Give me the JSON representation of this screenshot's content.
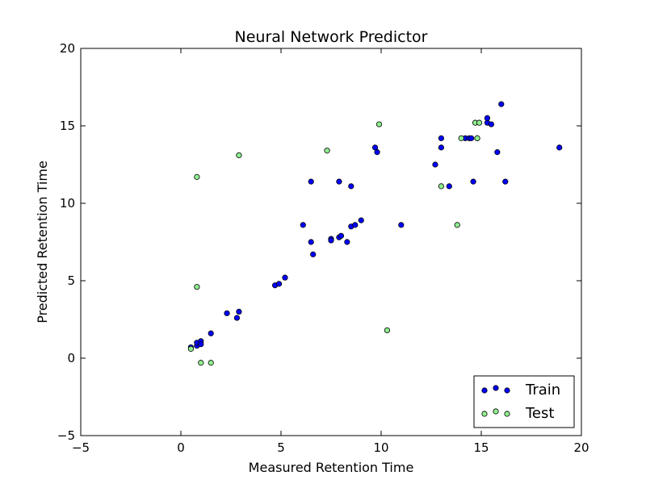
{
  "chart_data": {
    "type": "scatter",
    "title": "Neural Network Predictor",
    "xlabel": "Measured Retention Time",
    "ylabel": "Predicted Retention Time",
    "xlim": [
      -5,
      20
    ],
    "ylim": [
      -5,
      20
    ],
    "xticks": [
      -5,
      0,
      5,
      10,
      15,
      20
    ],
    "yticks": [
      -5,
      0,
      5,
      10,
      15,
      20
    ],
    "xtick_labels": [
      "−5",
      "0",
      "5",
      "10",
      "15",
      "20"
    ],
    "ytick_labels": [
      "−5",
      "0",
      "5",
      "10",
      "15",
      "20"
    ],
    "grid": false,
    "legend_position": "bottom-right",
    "series": [
      {
        "name": "Train",
        "color": "#0000ff",
        "points": [
          [
            0.5,
            0.7
          ],
          [
            0.8,
            0.8
          ],
          [
            0.8,
            1.0
          ],
          [
            1.0,
            1.1
          ],
          [
            1.0,
            0.9
          ],
          [
            1.5,
            1.6
          ],
          [
            2.3,
            2.9
          ],
          [
            2.8,
            2.6
          ],
          [
            2.9,
            3.0
          ],
          [
            4.7,
            4.7
          ],
          [
            4.9,
            4.8
          ],
          [
            5.2,
            5.2
          ],
          [
            6.1,
            8.6
          ],
          [
            6.5,
            7.5
          ],
          [
            6.6,
            6.7
          ],
          [
            6.5,
            11.4
          ],
          [
            7.5,
            7.7
          ],
          [
            7.5,
            7.6
          ],
          [
            7.9,
            7.8
          ],
          [
            8.0,
            7.9
          ],
          [
            8.3,
            7.5
          ],
          [
            7.9,
            11.4
          ],
          [
            8.5,
            11.1
          ],
          [
            8.5,
            8.5
          ],
          [
            8.7,
            8.6
          ],
          [
            9.0,
            8.9
          ],
          [
            9.7,
            13.6
          ],
          [
            9.8,
            13.3
          ],
          [
            11.0,
            8.6
          ],
          [
            12.7,
            12.5
          ],
          [
            13.0,
            14.2
          ],
          [
            13.0,
            13.6
          ],
          [
            13.4,
            11.1
          ],
          [
            14.2,
            14.2
          ],
          [
            14.4,
            14.2
          ],
          [
            14.5,
            14.2
          ],
          [
            14.6,
            11.4
          ],
          [
            14.8,
            14.2
          ],
          [
            15.3,
            15.2
          ],
          [
            15.3,
            15.5
          ],
          [
            15.5,
            15.1
          ],
          [
            15.8,
            13.3
          ],
          [
            16.0,
            16.4
          ],
          [
            16.2,
            11.4
          ],
          [
            18.9,
            13.6
          ]
        ]
      },
      {
        "name": "Test",
        "color": "#90ee90",
        "points": [
          [
            0.5,
            0.6
          ],
          [
            0.8,
            11.7
          ],
          [
            0.8,
            4.6
          ],
          [
            1.0,
            -0.3
          ],
          [
            1.5,
            -0.3
          ],
          [
            2.9,
            13.1
          ],
          [
            7.3,
            13.4
          ],
          [
            9.9,
            15.1
          ],
          [
            10.3,
            1.8
          ],
          [
            13.0,
            11.1
          ],
          [
            13.8,
            8.6
          ],
          [
            14.0,
            14.2
          ],
          [
            14.7,
            15.2
          ],
          [
            14.9,
            15.2
          ],
          [
            14.8,
            14.2
          ]
        ]
      }
    ]
  }
}
